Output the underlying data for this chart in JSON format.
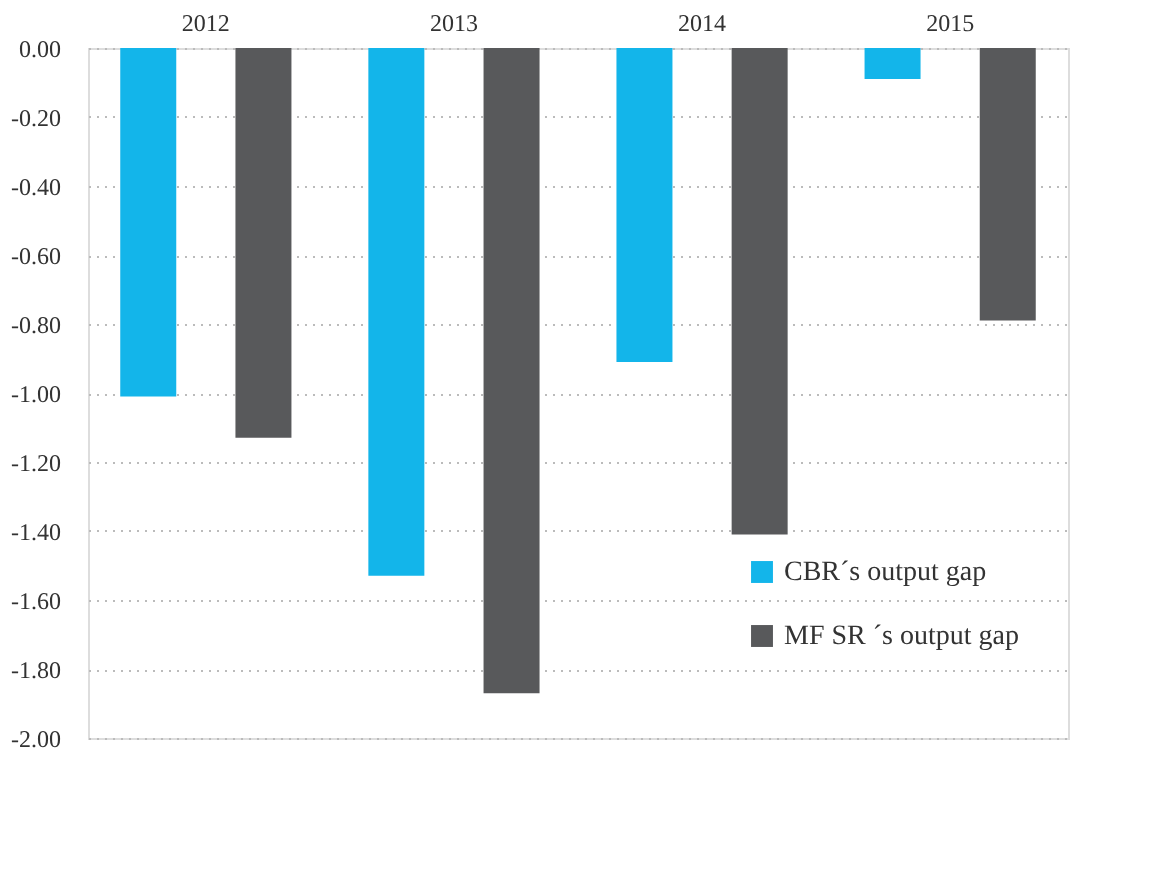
{
  "chart_data": {
    "type": "bar",
    "categories": [
      "2012",
      "2013",
      "2014",
      "2015"
    ],
    "series": [
      {
        "name": "CBR´s output gap",
        "color": "#13b5ea",
        "values": [
          -1.01,
          -1.53,
          -0.91,
          -0.09
        ]
      },
      {
        "name": "MF SR ´s output gap",
        "color": "#58595b",
        "values": [
          -1.13,
          -1.87,
          -1.41,
          -0.79
        ]
      }
    ],
    "ylim": [
      -2.0,
      0.0
    ],
    "yticks": [
      {
        "value": 0,
        "label": "0.00"
      },
      {
        "value": -0.2,
        "label": "-0.20"
      },
      {
        "value": -0.4,
        "label": "-0.40"
      },
      {
        "value": -0.6,
        "label": "-0.60"
      },
      {
        "value": -0.8,
        "label": "-0.80"
      },
      {
        "value": -1.0,
        "label": "-1.00"
      },
      {
        "value": -1.2,
        "label": "-1.20"
      },
      {
        "value": -1.4,
        "label": "-1.40"
      },
      {
        "value": -1.6,
        "label": "-1.60"
      },
      {
        "value": -1.8,
        "label": "-1.80"
      },
      {
        "value": -2.0,
        "label": "-2.00"
      }
    ],
    "grid": "y",
    "legend": "bottom right"
  }
}
